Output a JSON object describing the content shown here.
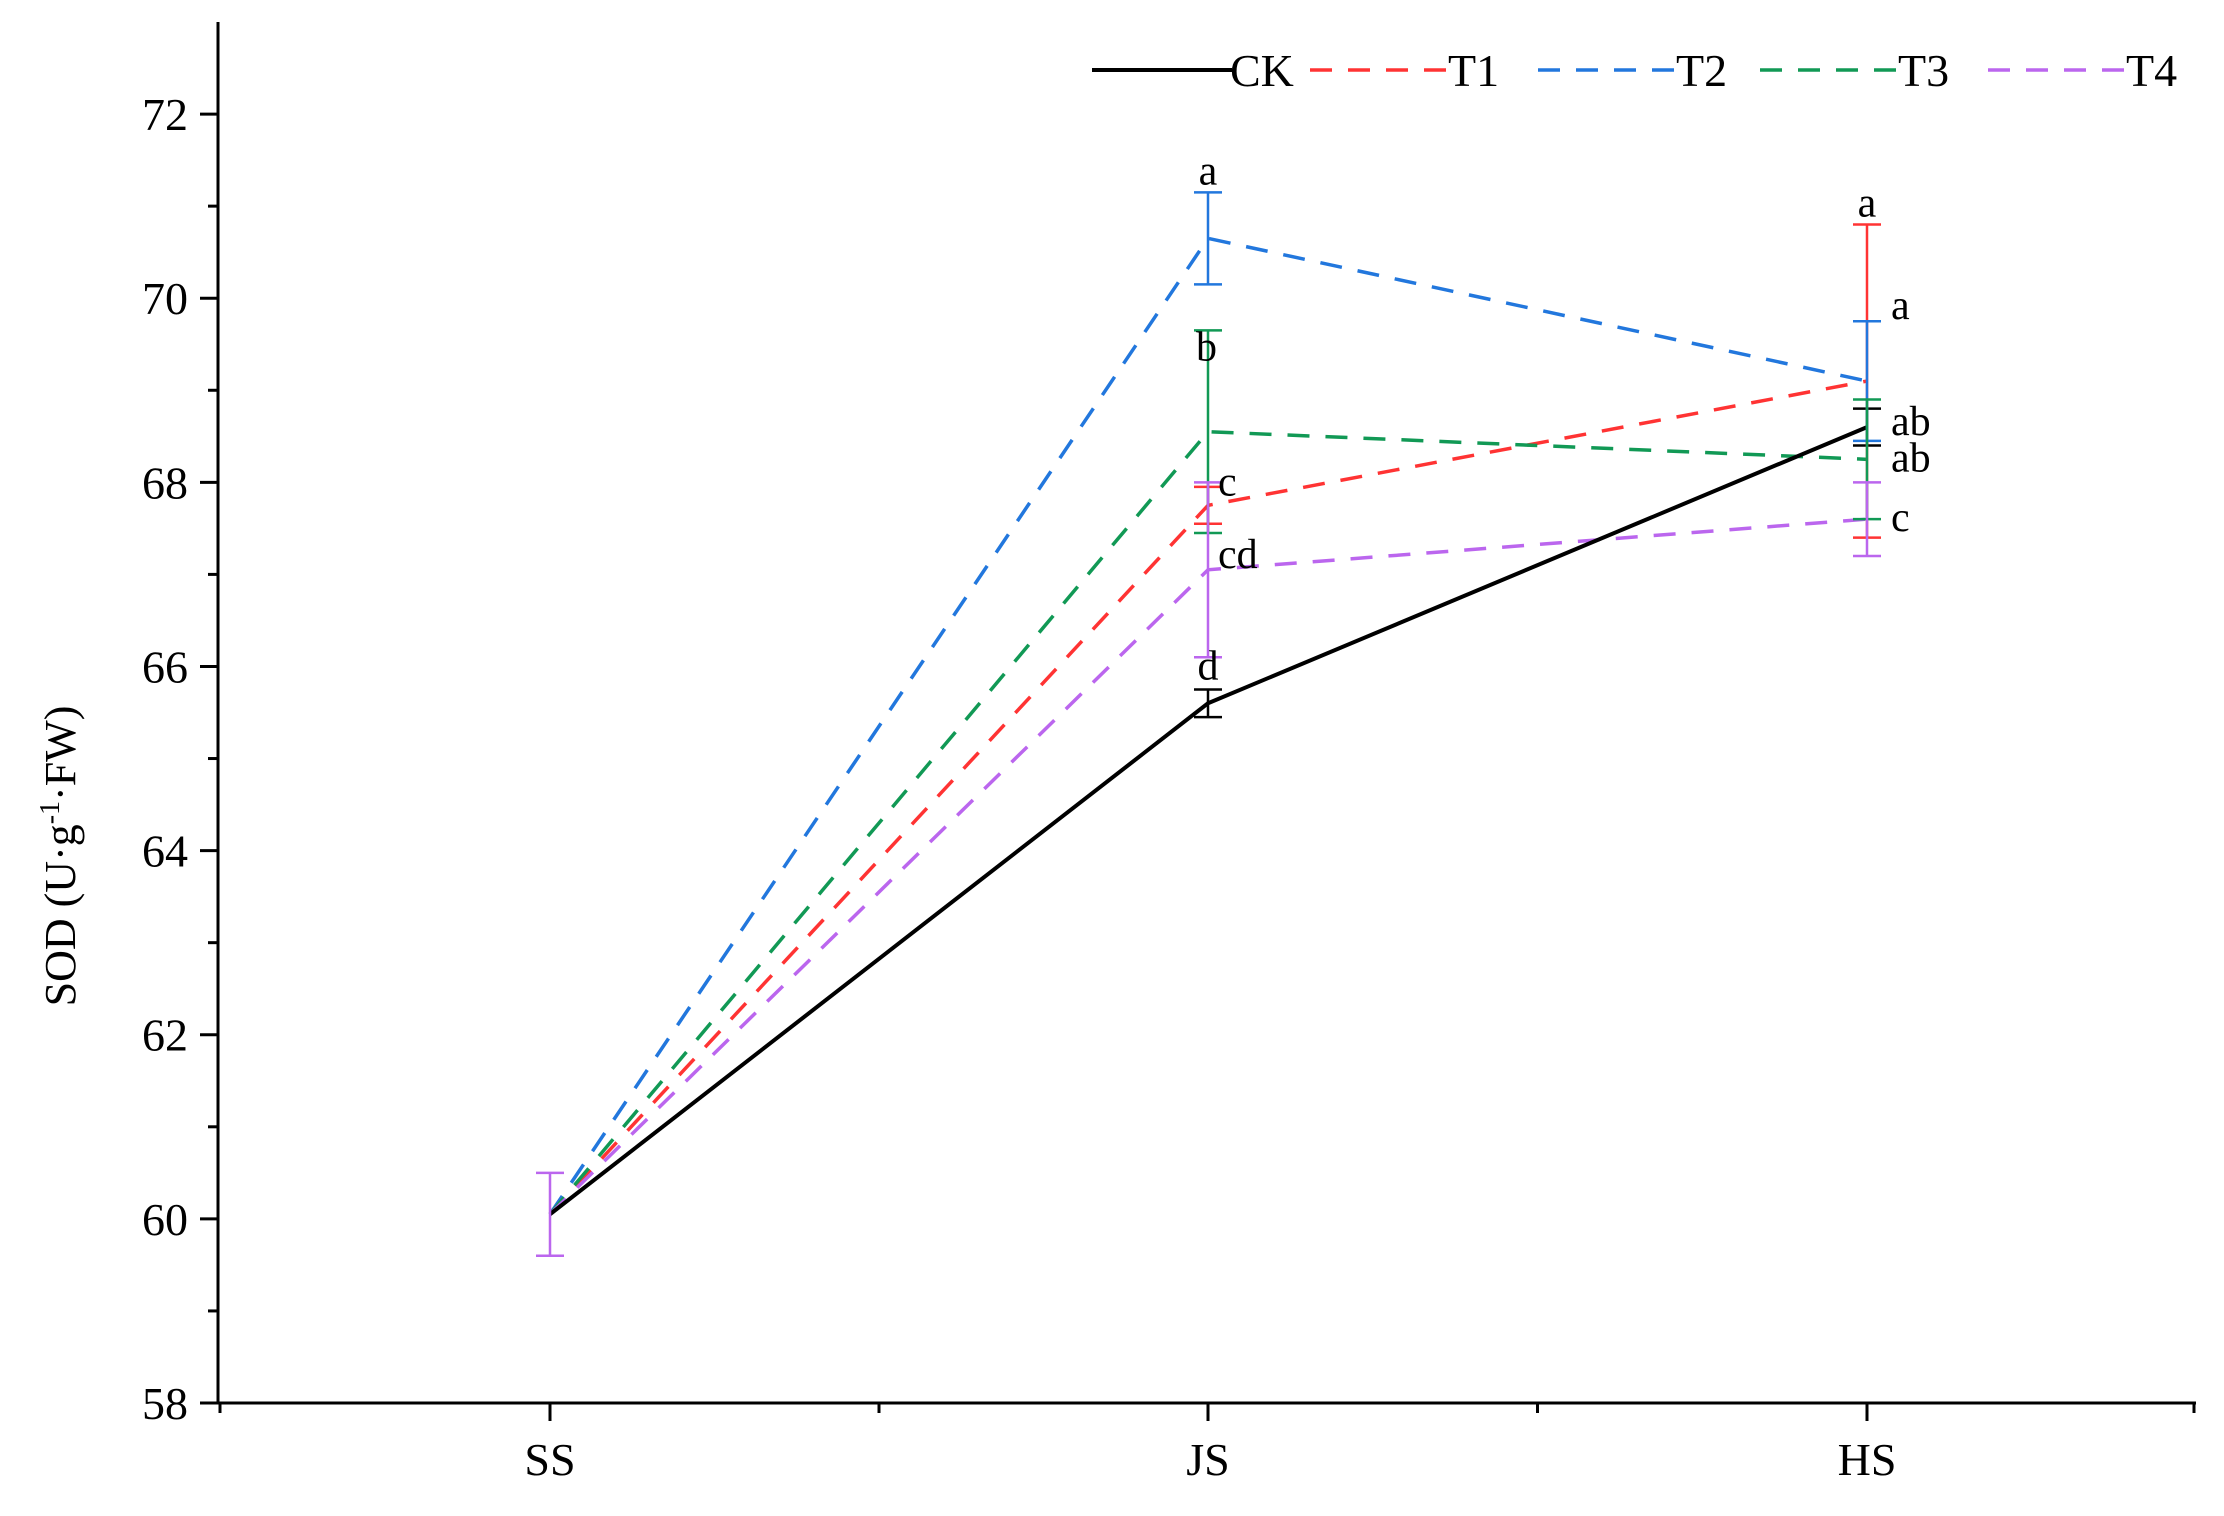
{
  "chart_data": {
    "type": "line",
    "categories": [
      "SS",
      "JS",
      "HS"
    ],
    "ylabel_main": "SOD (U·g",
    "ylabel_sup": "-1",
    "ylabel_end": "·FW)",
    "xlabel": "",
    "ylim": [
      58,
      73
    ],
    "yticks": [
      58,
      60,
      62,
      64,
      66,
      68,
      70,
      72
    ],
    "yticks_minor": [
      59,
      61,
      63,
      65,
      67,
      69,
      71
    ],
    "grid": false,
    "legend_placement": "top-right",
    "series": [
      {
        "name": "CK",
        "color": "#000000",
        "dash": "solid",
        "values": [
          60.05,
          65.6,
          68.6
        ],
        "err": [
          0.45,
          0.15,
          0.2
        ],
        "sig": [
          "",
          "d",
          "ab"
        ]
      },
      {
        "name": "T1",
        "color": "#ff3333",
        "dash": "dashed",
        "values": [
          60.05,
          67.75,
          69.1
        ],
        "err": [
          0.45,
          0.2,
          1.7
        ],
        "sig": [
          "",
          "c",
          "a"
        ]
      },
      {
        "name": "T2",
        "color": "#2277dd",
        "dash": "dashed",
        "values": [
          60.05,
          70.65,
          69.1
        ],
        "err": [
          0.45,
          0.5,
          0.65
        ],
        "sig": [
          "",
          "a",
          "a"
        ]
      },
      {
        "name": "T3",
        "color": "#119955",
        "dash": "dashed",
        "values": [
          60.05,
          68.55,
          68.25
        ],
        "err": [
          0.45,
          1.1,
          0.65
        ],
        "sig": [
          "",
          "b",
          "ab"
        ]
      },
      {
        "name": "T4",
        "color": "#bb66ee",
        "dash": "dashed",
        "values": [
          60.05,
          67.05,
          67.6
        ],
        "err": [
          0.45,
          0.95,
          0.4
        ],
        "sig": [
          "",
          "cd",
          "c"
        ]
      }
    ]
  }
}
